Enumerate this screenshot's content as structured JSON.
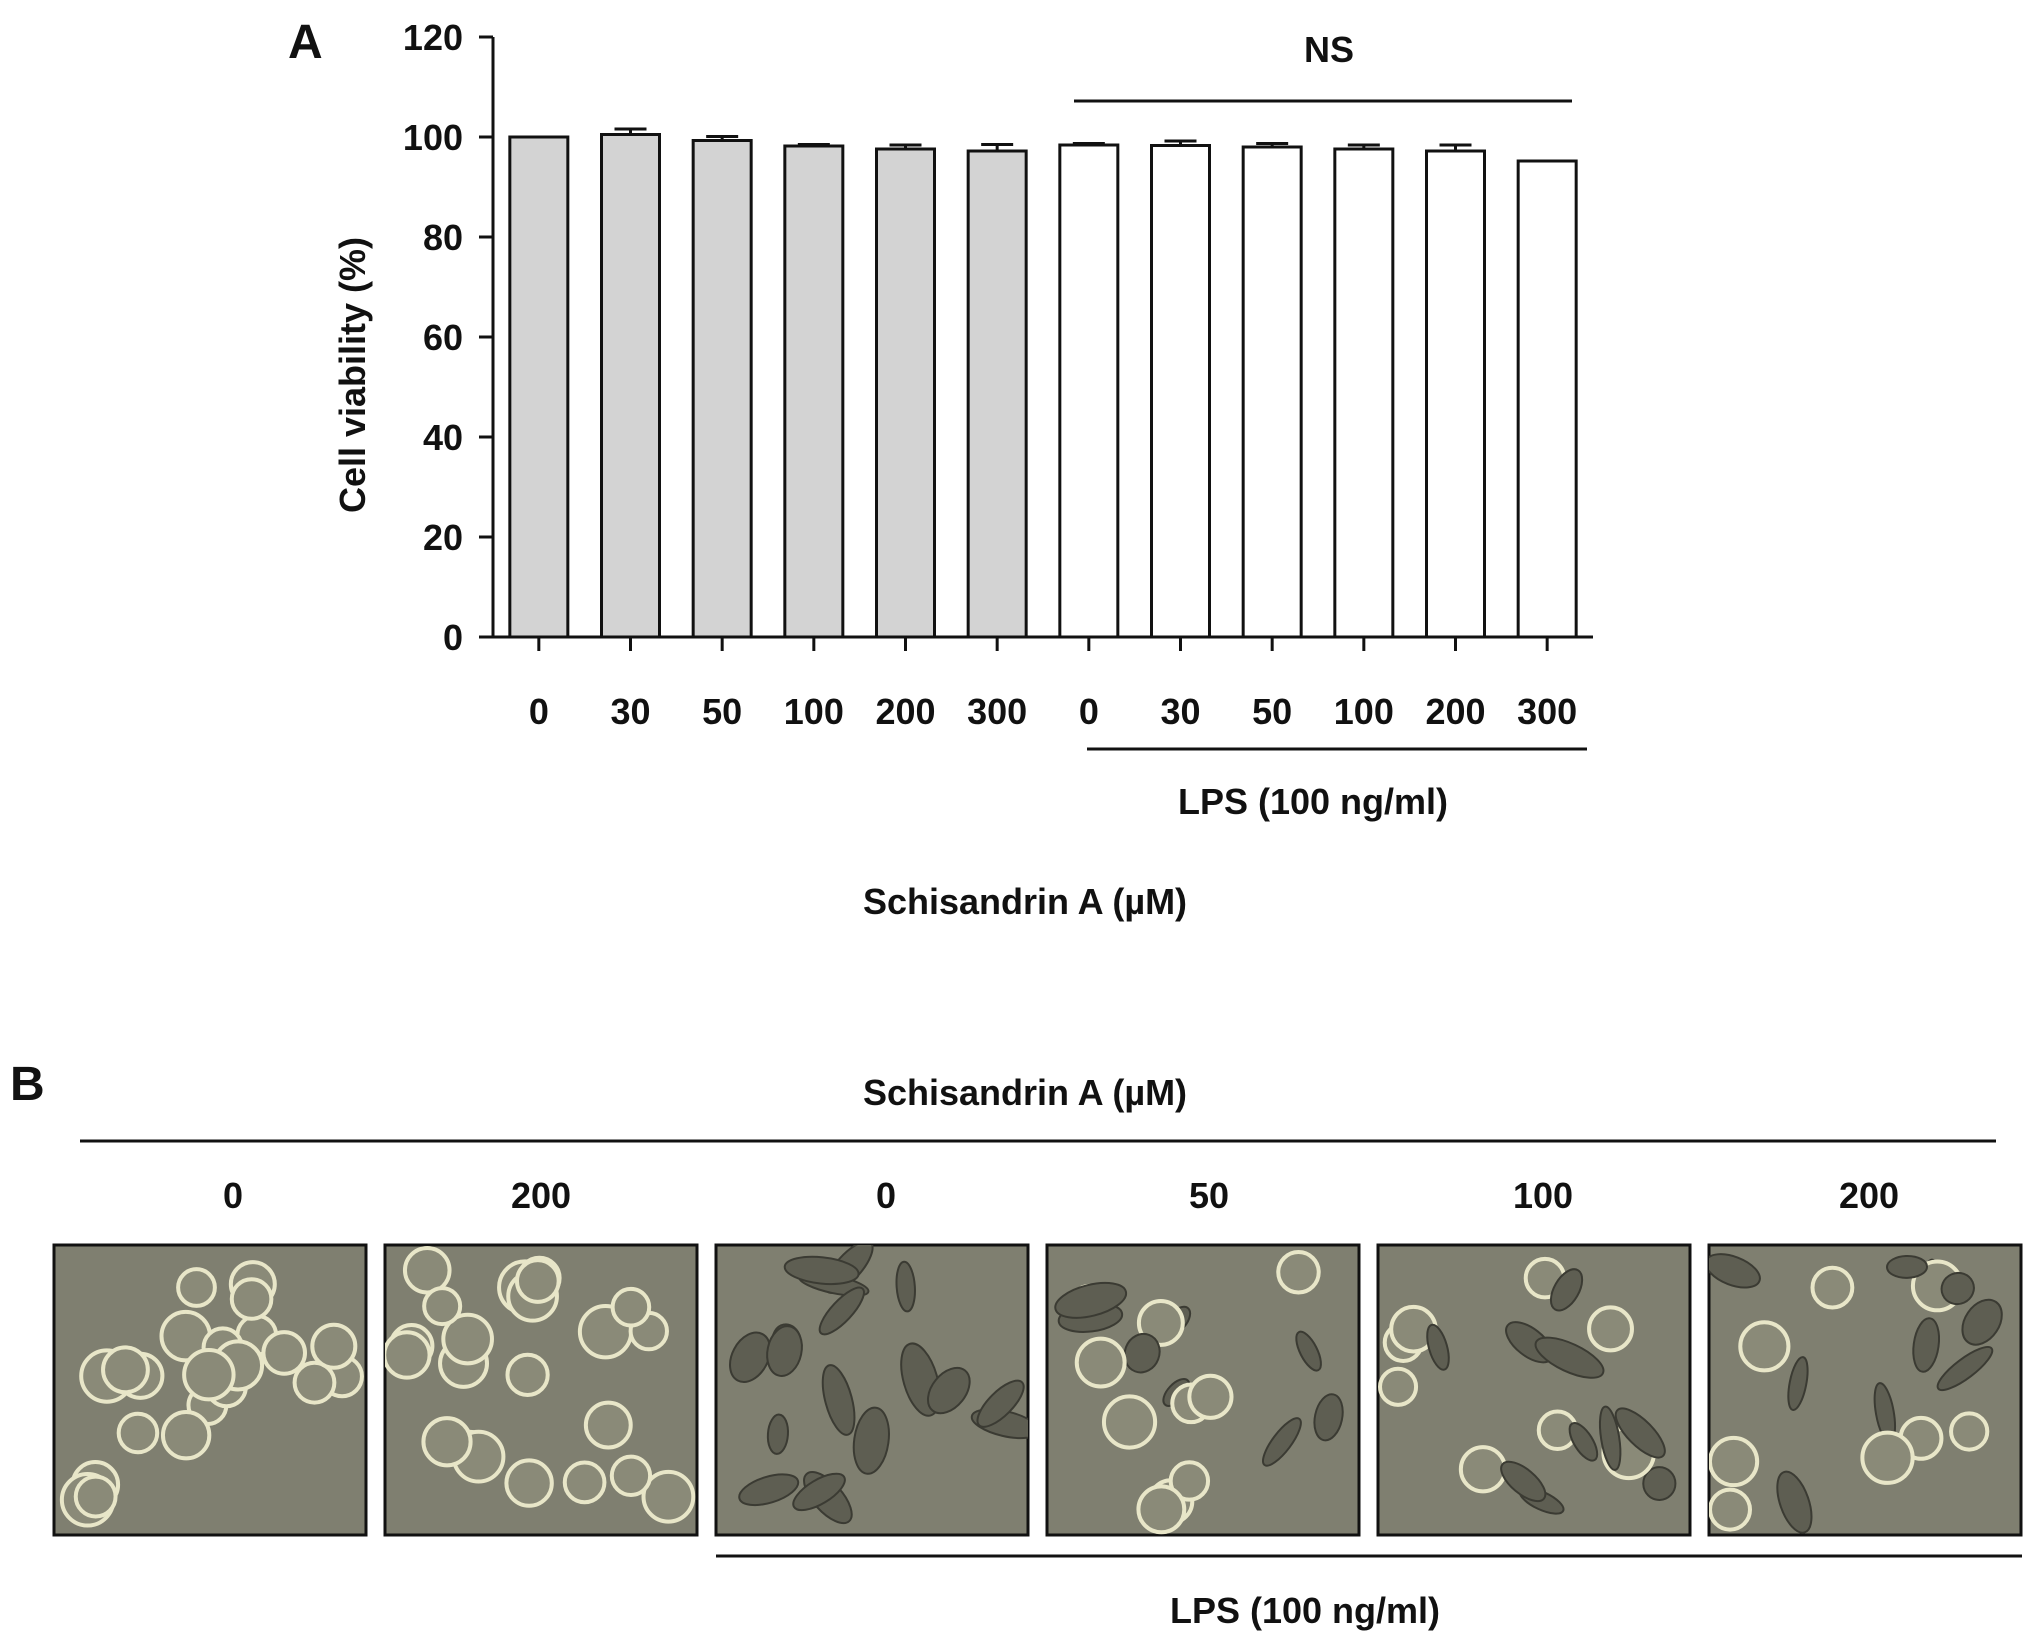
{
  "panel_a": {
    "letter": "A",
    "significance_label": "NS",
    "lps_label": "LPS (100 ng/ml)",
    "xlabel": "Schisandrin A (µM)",
    "colors": {
      "control_fill": "#d3d3d3",
      "lps_fill": "#ffffff",
      "stroke": "#111111"
    }
  },
  "chart_data": {
    "type": "bar",
    "categories": [
      "0",
      "30",
      "50",
      "100",
      "200",
      "300",
      "0",
      "30",
      "50",
      "100",
      "200",
      "300"
    ],
    "groups": [
      "control",
      "control",
      "control",
      "control",
      "control",
      "control",
      "lps",
      "lps",
      "lps",
      "lps",
      "lps",
      "lps"
    ],
    "series": [
      {
        "values": [
          100,
          100.5,
          99.3,
          98.2,
          97.6,
          97.2,
          98.4,
          98.3,
          98.0,
          97.6,
          97.2,
          95.2
        ],
        "errors": [
          0,
          1.1,
          0.8,
          0.3,
          0.8,
          1.3,
          0.3,
          0.9,
          0.7,
          0.8,
          1.2,
          0
        ]
      }
    ],
    "title": "",
    "xlabel": "Schisandrin A (µM)",
    "ylabel": "Cell viability (%)",
    "ylim": [
      0,
      120
    ],
    "yticks": [
      0,
      20,
      40,
      60,
      80,
      100,
      120
    ],
    "grid": false,
    "legend": "none"
  },
  "panel_b": {
    "letter": "B",
    "title": "Schisandrin A (µM)",
    "lps_label": "LPS (100 ng/ml)",
    "images": [
      {
        "label": "0",
        "lps": false,
        "morphology": "round"
      },
      {
        "label": "200",
        "lps": false,
        "morphology": "round"
      },
      {
        "label": "0",
        "lps": true,
        "morphology": "spread"
      },
      {
        "label": "50",
        "lps": true,
        "morphology": "mixed"
      },
      {
        "label": "100",
        "lps": true,
        "morphology": "mixed"
      },
      {
        "label": "200",
        "lps": true,
        "morphology": "mixed"
      }
    ]
  }
}
